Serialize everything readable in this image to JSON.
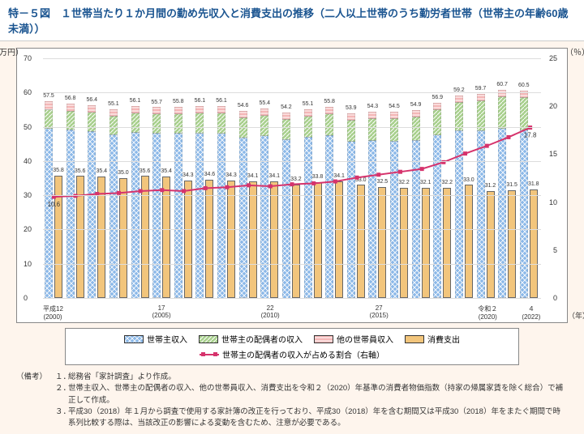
{
  "title": "特－５図　１世帯当たり１か月間の勤め先収入と消費支出の推移（二人以上世帯のうち勤労者世帯（世帯主の年齢60歳未満））",
  "axis": {
    "left_label": "（万円）",
    "right_label": "（％）",
    "x_unit": "（年）",
    "left_max": 70,
    "left_step": 10,
    "right_max": 25,
    "right_step": 5
  },
  "colors": {
    "head": "#8bb8e8",
    "spouse": "#a8d08d",
    "other": "#f4b7b7",
    "expend": "#f2c57c",
    "line": "#d6336c",
    "grid": "#dddddd",
    "bg": "#fef5ed",
    "plot_bg": "#ffffff",
    "border": "#888888",
    "text": "#333333"
  },
  "patterns": {
    "head": "check",
    "spouse": "diag",
    "other": "hdash",
    "expend": "solid"
  },
  "x_major": [
    {
      "i": 0,
      "label": "平成12",
      "year": "(2000)"
    },
    {
      "i": 5,
      "label": "17",
      "year": "(2005)"
    },
    {
      "i": 10,
      "label": "22",
      "year": "(2010)"
    },
    {
      "i": 15,
      "label": "27",
      "year": "(2015)"
    },
    {
      "i": 20,
      "label": "令和２",
      "year": "(2020)"
    },
    {
      "i": 22,
      "label": "４",
      "year": "(2022)"
    }
  ],
  "series": [
    {
      "total": 57.5,
      "head": 49.5,
      "spouse": 5.5,
      "other": 2.5,
      "expend": 35.8,
      "pct": 10.6
    },
    {
      "total": 56.8,
      "head": 49.2,
      "spouse": 5.4,
      "other": 2.2,
      "expend": 35.6,
      "pct": 10.7
    },
    {
      "total": 56.4,
      "head": 48.8,
      "spouse": 5.5,
      "other": 2.1,
      "expend": 35.4,
      "pct": 10.9
    },
    {
      "total": 55.1,
      "head": 47.7,
      "spouse": 5.4,
      "other": 2.0,
      "expend": 35.0,
      "pct": 11.0
    },
    {
      "total": 56.1,
      "head": 48.4,
      "spouse": 5.6,
      "other": 2.1,
      "expend": 35.6,
      "pct": 11.2
    },
    {
      "total": 55.7,
      "head": 48.0,
      "spouse": 5.6,
      "other": 2.1,
      "expend": 35.4,
      "pct": 11.3
    },
    {
      "total": 55.8,
      "head": 48.1,
      "spouse": 5.6,
      "other": 2.1,
      "expend": 34.3,
      "pct": 11.2
    },
    {
      "total": 56.1,
      "head": 48.2,
      "spouse": 5.8,
      "other": 2.1,
      "expend": 34.6,
      "pct": 11.5
    },
    {
      "total": 56.1,
      "head": 48.1,
      "spouse": 5.9,
      "other": 2.1,
      "expend": 34.3,
      "pct": 11.6
    },
    {
      "total": 54.6,
      "head": 46.8,
      "spouse": 5.8,
      "other": 2.0,
      "expend": 34.1,
      "pct": 11.8
    },
    {
      "total": 55.4,
      "head": 47.4,
      "spouse": 5.9,
      "other": 2.1,
      "expend": 34.1,
      "pct": 11.7
    },
    {
      "total": 54.2,
      "head": 46.3,
      "spouse": 5.9,
      "other": 2.0,
      "expend": 33.2,
      "pct": 11.9
    },
    {
      "total": 55.1,
      "head": 47.0,
      "spouse": 6.0,
      "other": 2.1,
      "expend": 33.8,
      "pct": 12.0
    },
    {
      "total": 55.8,
      "head": 47.5,
      "spouse": 6.2,
      "other": 2.1,
      "expend": 34.1,
      "pct": 12.2
    },
    {
      "total": 53.9,
      "head": 45.7,
      "spouse": 6.2,
      "other": 2.0,
      "expend": 33.0,
      "pct": 12.6
    },
    {
      "total": 54.3,
      "head": 45.9,
      "spouse": 6.4,
      "other": 2.0,
      "expend": 32.5,
      "pct": 12.9
    },
    {
      "total": 54.5,
      "head": 45.9,
      "spouse": 6.6,
      "other": 2.0,
      "expend": 32.2,
      "pct": 13.2
    },
    {
      "total": 54.9,
      "head": 46.1,
      "spouse": 6.8,
      "other": 2.0,
      "expend": 32.1,
      "pct": 13.5
    },
    {
      "total": 56.9,
      "head": 47.5,
      "spouse": 7.4,
      "other": 2.0,
      "expend": 32.2,
      "pct": 14.2
    },
    {
      "total": 59.2,
      "head": 49.0,
      "spouse": 8.2,
      "other": 2.0,
      "expend": 33.0,
      "pct": 15.1
    },
    {
      "total": 59.7,
      "head": 49.0,
      "spouse": 8.7,
      "other": 2.0,
      "expend": 31.2,
      "pct": 15.9
    },
    {
      "total": 60.7,
      "head": 49.4,
      "spouse": 9.3,
      "other": 2.0,
      "expend": 31.5,
      "pct": 16.8
    },
    {
      "total": 60.5,
      "head": 49.0,
      "spouse": 9.5,
      "other": 2.0,
      "expend": 31.8,
      "pct": 17.8
    }
  ],
  "legend": [
    {
      "key": "head",
      "label": "世帯主収入"
    },
    {
      "key": "spouse",
      "label": "世帯主の配偶者の収入"
    },
    {
      "key": "other",
      "label": "他の世帯員収入"
    },
    {
      "key": "expend",
      "label": "消費支出"
    },
    {
      "key": "line",
      "label": "世帯主の配偶者の収入が占める割合（右軸）"
    }
  ],
  "notes": {
    "label": "（備考）",
    "rows": [
      {
        "n": "１．",
        "t": "総務省「家計調査」より作成。"
      },
      {
        "n": "２．",
        "t": "世帯主収入、世帯主の配偶者の収入、他の世帯員収入、消費支出を令和２（2020）年基準の消費者物価指数（持家の帰属家賃を除く総合）で補正して作成。"
      },
      {
        "n": "３．",
        "t": "平成30（2018）年１月から調査で使用する家計簿の改正を行っており、平成30（2018）年を含む期間又は平成30（2018）年をまたぐ期間で時系列比較する際は、当該改正の影響による変動を含むため、注意が必要である。"
      }
    ]
  }
}
